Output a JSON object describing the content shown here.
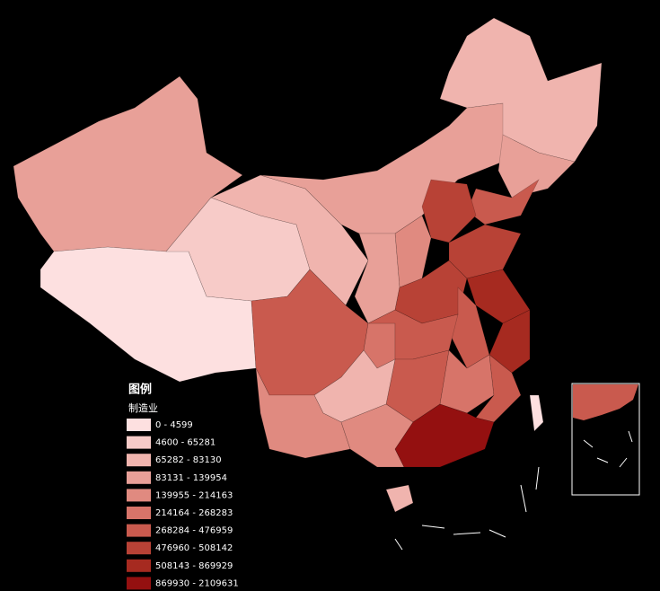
{
  "legend": {
    "title": "图例",
    "subtitle": "制造业",
    "classes": [
      {
        "label": "0 - 4599",
        "color": "#fde0e0"
      },
      {
        "label": "4600 - 65281",
        "color": "#f7cbc8"
      },
      {
        "label": "65282 - 83130",
        "color": "#f0b4ae"
      },
      {
        "label": "83131 - 139954",
        "color": "#e8a098"
      },
      {
        "label": "139955 - 214163",
        "color": "#e08a80"
      },
      {
        "label": "214164 - 268283",
        "color": "#d77469"
      },
      {
        "label": "268284 - 476959",
        "color": "#c95a4e"
      },
      {
        "label": "476960 - 508142",
        "color": "#b84236"
      },
      {
        "label": "508143 - 869929",
        "color": "#a62a20"
      },
      {
        "label": "869930 - 2109631",
        "color": "#941010"
      }
    ]
  }
}
